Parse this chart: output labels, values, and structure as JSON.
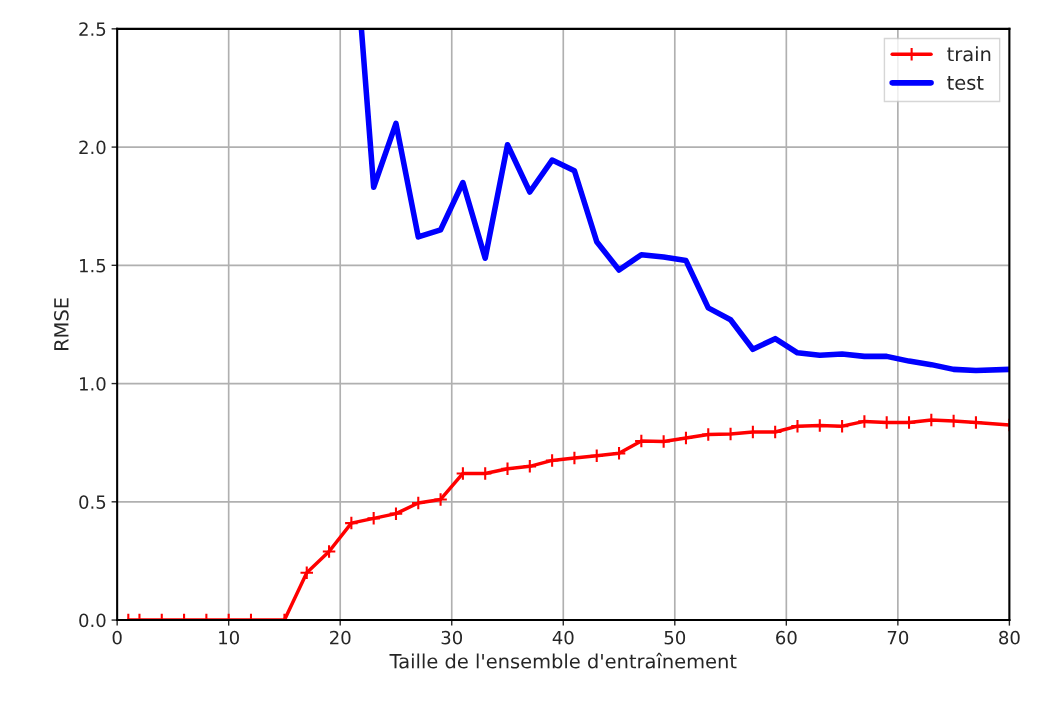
{
  "chart_data": {
    "type": "line",
    "xlabel": "Taille de l'ensemble d'entraînement",
    "ylabel": "RMSE",
    "xlim": [
      0,
      80
    ],
    "ylim": [
      0,
      2.5
    ],
    "xticks": [
      0,
      10,
      20,
      30,
      40,
      50,
      60,
      70,
      80
    ],
    "yticks": [
      {
        "value": 0,
        "label": "0.0"
      },
      0.5,
      {
        "value": 1,
        "label": "1.0"
      },
      1.5,
      {
        "value": 2,
        "label": "2.0"
      },
      2.5
    ],
    "grid": true,
    "legend": "top right",
    "series": [
      {
        "name": "train",
        "color": "#ff0000",
        "marker": "cross",
        "line_style": "solid",
        "x": [
          1,
          2,
          4,
          6,
          8,
          10,
          12,
          15,
          17,
          19,
          21,
          23,
          25,
          27,
          29,
          31,
          33,
          35,
          37,
          39,
          41,
          43,
          45,
          47,
          49,
          51,
          53,
          55,
          57,
          59,
          61,
          63,
          65,
          67,
          69,
          71,
          73,
          75,
          77,
          80
        ],
        "values": [
          0,
          0,
          0,
          0,
          0,
          0,
          0,
          0,
          0.2,
          0.29,
          0.41,
          0.43,
          0.45,
          0.495,
          0.51,
          0.62,
          0.62,
          0.64,
          0.65,
          0.675,
          0.685,
          0.695,
          0.705,
          0.757,
          0.755,
          0.77,
          0.785,
          0.787,
          0.795,
          0.795,
          0.82,
          0.823,
          0.82,
          0.84,
          0.835,
          0.835,
          0.846,
          0.842,
          0.835,
          0.825
        ]
      },
      {
        "name": "test",
        "color": "#0000ff",
        "marker": "none",
        "line_style": "solid",
        "x": [
          21.9,
          23,
          25,
          27,
          29,
          31,
          33,
          35,
          37,
          39,
          41,
          43,
          45,
          47,
          49,
          51,
          53,
          55,
          57,
          59,
          61,
          63,
          65,
          67,
          69,
          71,
          73,
          75,
          77,
          80
        ],
        "values": [
          2.5,
          1.83,
          2.1,
          1.62,
          1.65,
          1.85,
          1.53,
          2.01,
          1.81,
          1.945,
          1.9,
          1.6,
          1.48,
          1.545,
          1.535,
          1.52,
          1.32,
          1.27,
          1.145,
          1.19,
          1.13,
          1.12,
          1.125,
          1.115,
          1.115,
          1.095,
          1.08,
          1.06,
          1.055,
          1.06
        ]
      }
    ]
  }
}
